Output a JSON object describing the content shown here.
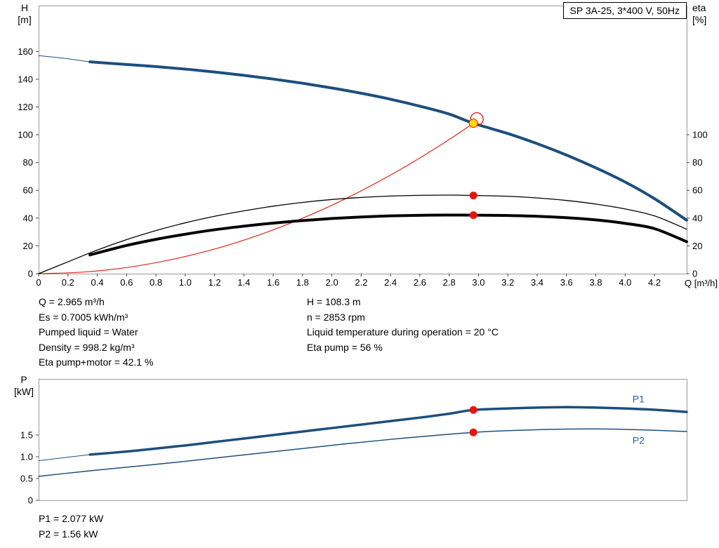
{
  "colors": {
    "curve_blue": "#1d4f7c",
    "curve_black": "#000000",
    "curve_red": "#e0241b",
    "marker_red": "#e8150d",
    "marker_yellow": "#ffd800",
    "label_blue": "#1f5fa9",
    "frame": "#9a9a9a",
    "tick": "#444444"
  },
  "info_panel": {
    "left": [
      "Q = 2.965 m³/h",
      "Es = 0.7005 kWh/m³",
      "Pumped liquid = Water",
      "Density = 998.2 kg/m³",
      "Eta pump+motor = 42.1 %"
    ],
    "right": [
      "H = 108.3 m",
      "n = 2853 rpm",
      "Liquid temperature during operation = 20 °C",
      "Eta pump = 56 %"
    ]
  },
  "results": [
    "P1 = 2.077 kW",
    "P2 = 1.56 kW"
  ],
  "chart_data": [
    {
      "type": "line",
      "title": "SP 3A-25, 3*400 V, 50Hz",
      "axis_titles": {
        "left": [
          "H",
          "[m]"
        ],
        "right": [
          "eta",
          "[%]"
        ],
        "x": "Q [m³/h]"
      },
      "xlim": [
        0,
        4.42
      ],
      "ylim": [
        0,
        193
      ],
      "xticks": [
        "0",
        "0.2",
        "0.4",
        "0.6",
        "0.8",
        "1.0",
        "1.2",
        "1.4",
        "1.6",
        "1.8",
        "2.0",
        "2.2",
        "2.4",
        "2.6",
        "2.8",
        "3.0",
        "3.2",
        "3.4",
        "3.6",
        "3.8",
        "4.0",
        "4.2"
      ],
      "yticks": [
        "0",
        "20",
        "40",
        "60",
        "80",
        "100",
        "120",
        "140",
        "160"
      ],
      "y2ticks": [
        "0",
        "20",
        "40",
        "60",
        "80",
        "100"
      ],
      "operating_point": {
        "q": 2.965,
        "h": 108.3,
        "eta_pump": 56,
        "eta_pump_motor": 42.1
      },
      "series": [
        {
          "name": "head-curve-leadin",
          "color": "#1d4f7c",
          "width": 1,
          "points": [
            [
              0,
              157
            ],
            [
              0.18,
              155
            ],
            [
              0.35,
              152.5
            ]
          ]
        },
        {
          "name": "head-curve",
          "color": "#1d4f7c",
          "width": 4,
          "points": [
            [
              0.35,
              152.5
            ],
            [
              0.6,
              150.6
            ],
            [
              0.8,
              149.1
            ],
            [
              1.0,
              147.3
            ],
            [
              1.2,
              145.2
            ],
            [
              1.4,
              142.8
            ],
            [
              1.6,
              140.1
            ],
            [
              1.8,
              137.1
            ],
            [
              2.0,
              133.7
            ],
            [
              2.2,
              129.9
            ],
            [
              2.4,
              125.6
            ],
            [
              2.6,
              120.6
            ],
            [
              2.8,
              114.9
            ],
            [
              2.965,
              108.3
            ],
            [
              3.2,
              100.9
            ],
            [
              3.4,
              93.6
            ],
            [
              3.6,
              85.4
            ],
            [
              3.8,
              76.2
            ],
            [
              4.0,
              66.0
            ],
            [
              4.2,
              54.0
            ],
            [
              4.42,
              38.5
            ]
          ]
        },
        {
          "name": "system-curve",
          "color": "#e0241b",
          "width": 1.2,
          "points": [
            [
              0,
              0
            ],
            [
              0.3,
              1.1
            ],
            [
              0.6,
              4.4
            ],
            [
              0.9,
              10.0
            ],
            [
              1.2,
              17.7
            ],
            [
              1.5,
              27.7
            ],
            [
              1.8,
              39.9
            ],
            [
              2.1,
              54.3
            ],
            [
              2.4,
              71.0
            ],
            [
              2.6,
              83.3
            ],
            [
              2.8,
              96.6
            ],
            [
              2.965,
              108.3
            ]
          ]
        },
        {
          "name": "eta-pump-curve",
          "color": "#000000",
          "width": 1.3,
          "points": [
            [
              0,
              0
            ],
            [
              0.2,
              8.5
            ],
            [
              0.4,
              17
            ],
            [
              0.6,
              24.5
            ],
            [
              0.8,
              31
            ],
            [
              1.0,
              36.6
            ],
            [
              1.2,
              41.3
            ],
            [
              1.4,
              45.2
            ],
            [
              1.6,
              48.6
            ],
            [
              1.8,
              51.3
            ],
            [
              2.0,
              53.4
            ],
            [
              2.2,
              54.9
            ],
            [
              2.4,
              55.9
            ],
            [
              2.6,
              56.4
            ],
            [
              2.8,
              56.6
            ],
            [
              2.965,
              56.3
            ],
            [
              3.2,
              55.7
            ],
            [
              3.4,
              54.5
            ],
            [
              3.6,
              52.7
            ],
            [
              3.8,
              50.1
            ],
            [
              4.0,
              46.6
            ],
            [
              4.2,
              41.6
            ],
            [
              4.42,
              32.0
            ]
          ]
        },
        {
          "name": "eta-pump-motor-curve",
          "color": "#000000",
          "width": 4,
          "points": [
            [
              0.35,
              13.5
            ],
            [
              0.6,
              20.3
            ],
            [
              0.8,
              24.7
            ],
            [
              1.0,
              28.4
            ],
            [
              1.2,
              31.6
            ],
            [
              1.4,
              34.2
            ],
            [
              1.6,
              36.4
            ],
            [
              1.8,
              38.2
            ],
            [
              2.0,
              39.7
            ],
            [
              2.2,
              40.8
            ],
            [
              2.4,
              41.6
            ],
            [
              2.6,
              42.0
            ],
            [
              2.8,
              42.2
            ],
            [
              2.965,
              42.1
            ],
            [
              3.2,
              41.9
            ],
            [
              3.4,
              41.3
            ],
            [
              3.6,
              40.3
            ],
            [
              3.8,
              38.7
            ],
            [
              4.0,
              36.2
            ],
            [
              4.2,
              32.4
            ],
            [
              4.42,
              23.0
            ]
          ]
        }
      ],
      "markers": [
        {
          "name": "duty-point-ring",
          "x": 2.965,
          "y": 108.3,
          "dx": 5,
          "dy": -6,
          "r": 9,
          "stroke": "#e8150d",
          "sw": 1.3
        },
        {
          "name": "duty-point-marker",
          "x": 2.965,
          "y": 108.3,
          "r": 6,
          "fill": "#ffd800",
          "stroke": "#e8150d",
          "sw": 1
        },
        {
          "name": "eta-pump-point",
          "x": 2.965,
          "y": 56.3,
          "r": 5.5,
          "fill": "#e8150d"
        },
        {
          "name": "eta-pump-motor-point",
          "x": 2.965,
          "y": 42.1,
          "r": 5.5,
          "fill": "#e8150d"
        }
      ],
      "labels": []
    },
    {
      "type": "line",
      "axis_titles": {
        "left": [
          "P",
          "[kW]"
        ]
      },
      "xlim": [
        0,
        4.42
      ],
      "ylim": [
        0,
        2.79
      ],
      "xticks": [],
      "yticks": [
        "0",
        "0.5",
        "1.0",
        "1.5"
      ],
      "series": [
        {
          "name": "p1-curve-leadin",
          "color": "#1d4f7c",
          "width": 1,
          "points": [
            [
              0,
              0.91
            ],
            [
              0.35,
              1.05
            ]
          ]
        },
        {
          "name": "p1-curve",
          "color": "#1d4f7c",
          "width": 3.5,
          "points": [
            [
              0.35,
              1.05
            ],
            [
              0.6,
              1.12
            ],
            [
              0.8,
              1.19
            ],
            [
              1.0,
              1.26
            ],
            [
              1.2,
              1.34
            ],
            [
              1.4,
              1.42
            ],
            [
              1.6,
              1.5
            ],
            [
              1.8,
              1.58
            ],
            [
              2.0,
              1.66
            ],
            [
              2.2,
              1.74
            ],
            [
              2.4,
              1.82
            ],
            [
              2.6,
              1.9
            ],
            [
              2.8,
              1.99
            ],
            [
              2.965,
              2.077
            ],
            [
              3.2,
              2.11
            ],
            [
              3.4,
              2.13
            ],
            [
              3.6,
              2.14
            ],
            [
              3.8,
              2.13
            ],
            [
              4.0,
              2.11
            ],
            [
              4.2,
              2.08
            ],
            [
              4.42,
              2.03
            ]
          ]
        },
        {
          "name": "p2-curve",
          "color": "#1d4f7c",
          "width": 1.5,
          "points": [
            [
              0,
              0.55
            ],
            [
              0.3,
              0.66
            ],
            [
              0.6,
              0.76
            ],
            [
              0.9,
              0.86
            ],
            [
              1.2,
              0.97
            ],
            [
              1.5,
              1.08
            ],
            [
              1.8,
              1.19
            ],
            [
              2.1,
              1.3
            ],
            [
              2.4,
              1.4
            ],
            [
              2.7,
              1.49
            ],
            [
              2.965,
              1.56
            ],
            [
              3.2,
              1.6
            ],
            [
              3.5,
              1.63
            ],
            [
              3.8,
              1.64
            ],
            [
              4.1,
              1.62
            ],
            [
              4.42,
              1.58
            ]
          ]
        }
      ],
      "markers": [
        {
          "name": "p1-point",
          "x": 2.965,
          "y": 2.077,
          "r": 5.5,
          "fill": "#e8150d"
        },
        {
          "name": "p2-point",
          "x": 2.965,
          "y": 1.56,
          "r": 5.5,
          "fill": "#e8150d"
        }
      ],
      "labels": [
        {
          "name": "p1-label",
          "text": "P1",
          "x": 4.05,
          "y": 2.25,
          "color": "#1f5fa9"
        },
        {
          "name": "p2-label",
          "text": "P2",
          "x": 4.05,
          "y": 1.3,
          "color": "#1f5fa9"
        }
      ]
    }
  ]
}
